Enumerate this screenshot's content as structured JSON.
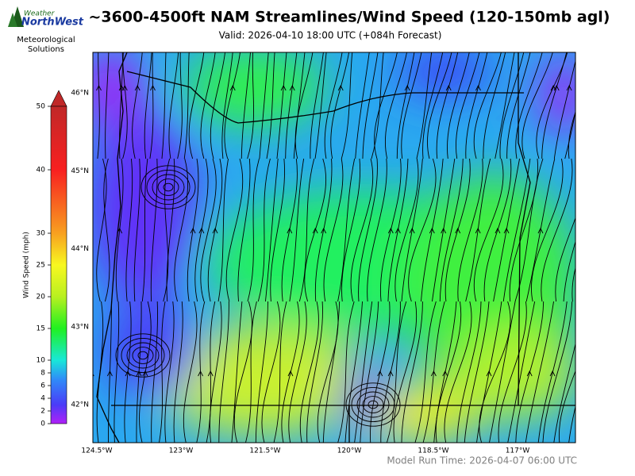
{
  "logo": {
    "line1": "Weather",
    "line2": "NorthWest",
    "line3": "Meteorological",
    "line4": "Solutions"
  },
  "header": {
    "title": "~3600-4500ft NAM Streamlines/Wind Speed (120-150mb agl)",
    "subtitle": "Valid: 2026-04-10 18:00 UTC  (+084h Forecast)"
  },
  "colorbar": {
    "label": "Wind Speed (mph)",
    "range": [
      0,
      50
    ],
    "ticks": [
      0,
      2,
      4,
      6,
      8,
      10,
      15,
      20,
      25,
      30,
      40,
      50
    ]
  },
  "map": {
    "lat_labels": [
      "46°N",
      "45°N",
      "44°N",
      "43°N",
      "42°N"
    ],
    "lon_labels": [
      "124.5°W",
      "123°W",
      "121.5°W",
      "120°W",
      "118.5°W",
      "117°W"
    ]
  },
  "footer": {
    "model_run": "Model Run Time: 2026-04-07 06:00 UTC"
  }
}
